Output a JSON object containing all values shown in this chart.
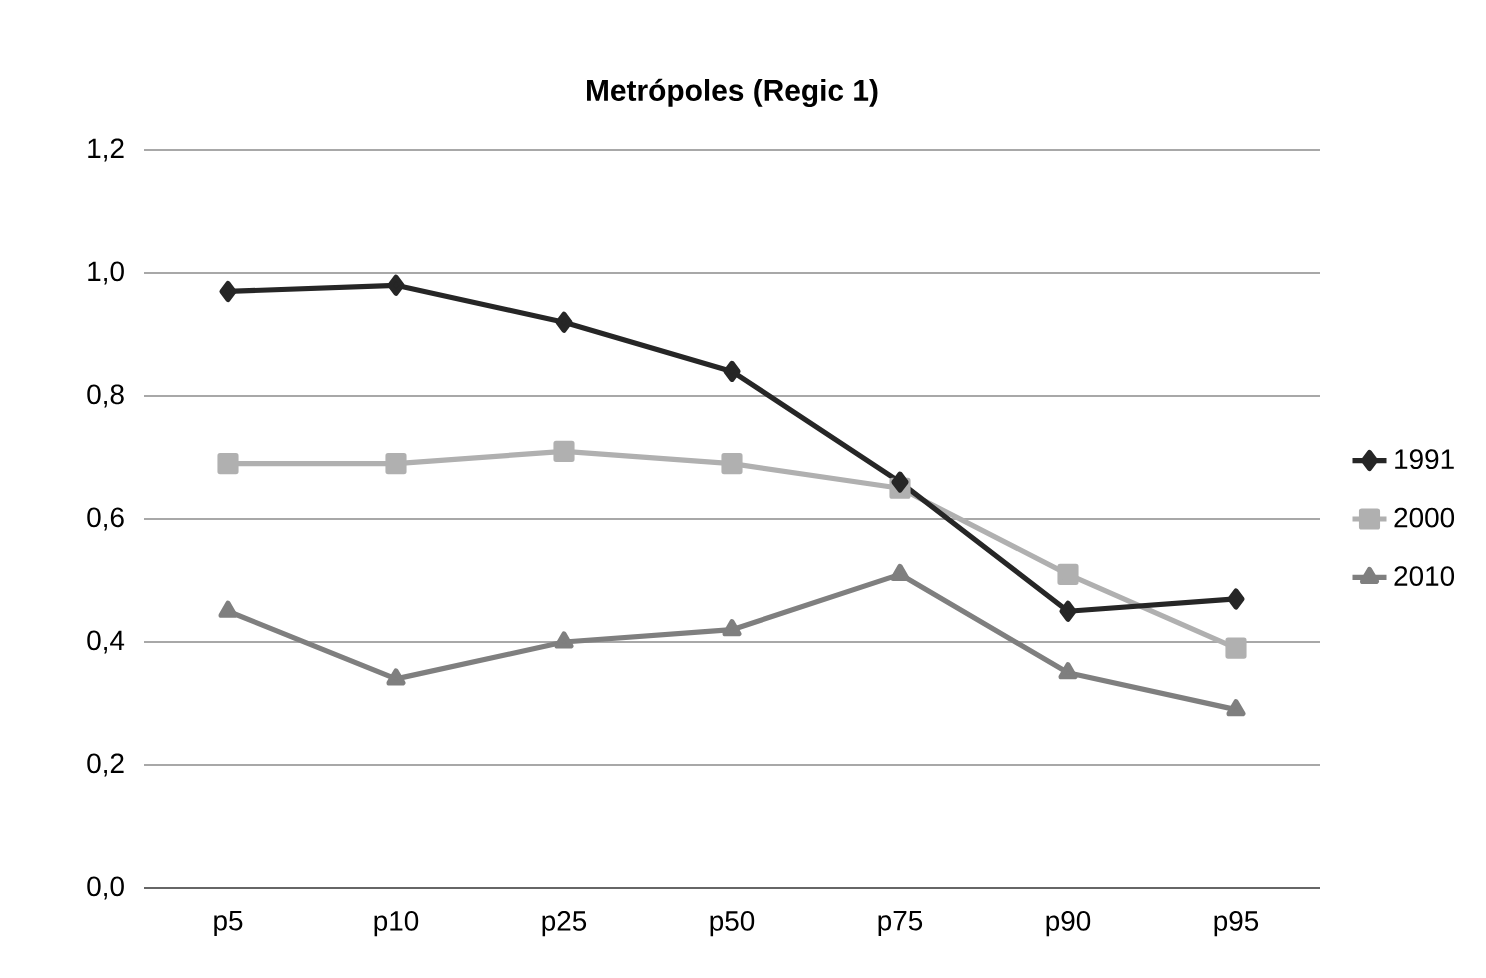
{
  "chart_data": {
    "type": "line",
    "title": "Metrópoles (Regic 1)",
    "categories": [
      "p5",
      "p10",
      "p25",
      "p50",
      "p75",
      "p90",
      "p95"
    ],
    "series": [
      {
        "name": "1991",
        "color": "#262626",
        "marker": "diamond",
        "values": [
          0.97,
          0.98,
          0.92,
          0.84,
          0.66,
          0.45,
          0.47
        ]
      },
      {
        "name": "2000",
        "color": "#b0b0b0",
        "marker": "square",
        "values": [
          0.69,
          0.69,
          0.71,
          0.69,
          0.65,
          0.51,
          0.39
        ]
      },
      {
        "name": "2010",
        "color": "#7f7f7f",
        "marker": "triangle",
        "values": [
          0.45,
          0.34,
          0.4,
          0.42,
          0.51,
          0.35,
          0.29
        ]
      }
    ],
    "ylim": [
      0,
      1.2
    ],
    "yticks": [
      {
        "value": 0,
        "label": "0,0"
      },
      {
        "value": 0.2,
        "label": "0,2"
      },
      {
        "value": 0.4,
        "label": "0,4"
      },
      {
        "value": 0.6,
        "label": "0,6"
      },
      {
        "value": 0.8,
        "label": "0,8"
      },
      {
        "value": 1.0,
        "label": "1,0"
      },
      {
        "value": 1.2,
        "label": "1,2"
      }
    ],
    "grid": "y",
    "legend": "right",
    "line_style": "solid"
  }
}
